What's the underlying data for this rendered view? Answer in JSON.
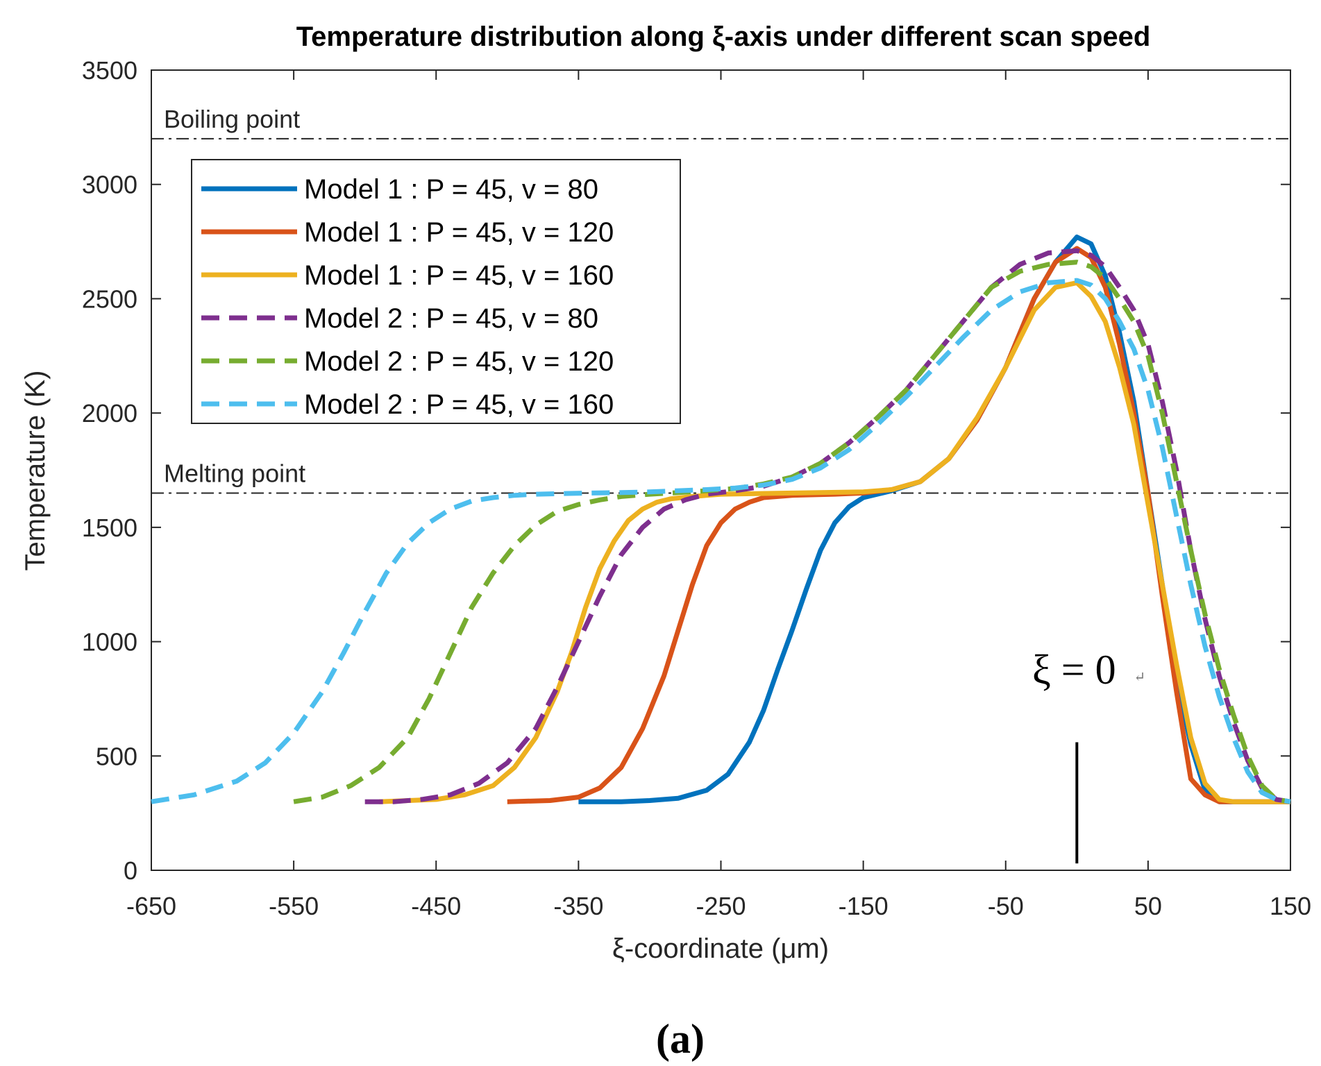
{
  "chart_data": {
    "type": "line",
    "title": "Temperature distribution along ξ-axis under different scan speed",
    "xlabel": "ξ-coordinate (μm)",
    "ylabel": "Temperature (K)",
    "xlim": [
      -650,
      150
    ],
    "ylim": [
      0,
      3500
    ],
    "xticks": [
      -650,
      -550,
      -450,
      -350,
      -250,
      -150,
      -50,
      50,
      150
    ],
    "yticks": [
      0,
      500,
      1000,
      1500,
      2000,
      2500,
      3000,
      3500
    ],
    "grid": false,
    "legend_position": "top-left",
    "reference_lines": [
      {
        "label": "Boiling point",
        "y": 3200
      },
      {
        "label": "Melting point",
        "y": 1650
      }
    ],
    "annotation": {
      "text": "ξ = 0",
      "x": 0,
      "y_from": 30,
      "y_to": 560,
      "mark": "↵"
    },
    "panel_label": "(a)",
    "series": [
      {
        "name": "Model 1 : P = 45, v = 80",
        "color": "#0072BD",
        "dash": "solid",
        "x": [
          -350,
          -320,
          -300,
          -280,
          -260,
          -245,
          -230,
          -220,
          -210,
          -200,
          -190,
          -180,
          -170,
          -160,
          -150,
          -130,
          -110,
          -90,
          -70,
          -50,
          -30,
          -15,
          0,
          10,
          20,
          30,
          40,
          50,
          60,
          70,
          80,
          90,
          100,
          110,
          130,
          150
        ],
        "y": [
          300,
          300,
          305,
          315,
          350,
          420,
          560,
          700,
          880,
          1050,
          1230,
          1400,
          1520,
          1590,
          1630,
          1660,
          1700,
          1800,
          1970,
          2200,
          2500,
          2660,
          2770,
          2740,
          2600,
          2350,
          2050,
          1650,
          1250,
          850,
          550,
          350,
          300,
          300,
          300,
          300
        ]
      },
      {
        "name": "Model 1 : P = 45, v = 120",
        "color": "#D95319",
        "dash": "solid",
        "x": [
          -400,
          -370,
          -350,
          -335,
          -320,
          -305,
          -290,
          -280,
          -270,
          -260,
          -250,
          -240,
          -230,
          -220,
          -200,
          -170,
          -150,
          -130,
          -110,
          -90,
          -70,
          -50,
          -30,
          -15,
          0,
          10,
          20,
          30,
          40,
          50,
          60,
          70,
          80,
          90,
          100,
          110,
          130,
          150
        ],
        "y": [
          300,
          305,
          320,
          360,
          450,
          620,
          850,
          1050,
          1250,
          1420,
          1520,
          1580,
          1610,
          1630,
          1640,
          1645,
          1650,
          1665,
          1700,
          1800,
          1970,
          2200,
          2500,
          2660,
          2720,
          2680,
          2550,
          2300,
          2000,
          1650,
          1200,
          780,
          400,
          330,
          300,
          300,
          300,
          300
        ]
      },
      {
        "name": "Model 1 : P = 45, v = 160",
        "color": "#EDB120",
        "dash": "solid",
        "x": [
          -490,
          -450,
          -430,
          -410,
          -395,
          -380,
          -365,
          -355,
          -345,
          -335,
          -325,
          -315,
          -305,
          -295,
          -285,
          -270,
          -250,
          -200,
          -150,
          -130,
          -110,
          -90,
          -70,
          -50,
          -30,
          -15,
          0,
          10,
          20,
          30,
          40,
          50,
          60,
          70,
          80,
          90,
          100,
          110,
          130,
          150
        ],
        "y": [
          300,
          310,
          330,
          370,
          450,
          580,
          780,
          950,
          1150,
          1320,
          1440,
          1530,
          1580,
          1610,
          1625,
          1635,
          1645,
          1650,
          1655,
          1665,
          1700,
          1800,
          1980,
          2200,
          2450,
          2550,
          2570,
          2510,
          2400,
          2200,
          1950,
          1600,
          1250,
          900,
          580,
          380,
          310,
          300,
          300,
          300
        ]
      },
      {
        "name": "Model 2 : P = 45, v = 80",
        "color": "#7E2F8E",
        "dash": "dashed",
        "x": [
          -500,
          -480,
          -460,
          -440,
          -420,
          -400,
          -380,
          -365,
          -350,
          -335,
          -320,
          -305,
          -290,
          -275,
          -260,
          -240,
          -220,
          -200,
          -180,
          -160,
          -140,
          -120,
          -100,
          -80,
          -60,
          -40,
          -20,
          0,
          10,
          20,
          30,
          40,
          50,
          60,
          70,
          80,
          90,
          100,
          110,
          120,
          130,
          140,
          150
        ],
        "y": [
          300,
          300,
          310,
          330,
          380,
          470,
          620,
          800,
          1000,
          1200,
          1380,
          1500,
          1580,
          1620,
          1645,
          1660,
          1680,
          1720,
          1780,
          1870,
          1980,
          2100,
          2250,
          2400,
          2550,
          2650,
          2700,
          2710,
          2690,
          2640,
          2550,
          2450,
          2300,
          2050,
          1750,
          1400,
          1100,
          850,
          650,
          480,
          360,
          310,
          300
        ]
      },
      {
        "name": "Model 2 : P = 45, v = 120",
        "color": "#77AC30",
        "dash": "dashed",
        "x": [
          -550,
          -530,
          -510,
          -490,
          -470,
          -455,
          -440,
          -425,
          -410,
          -395,
          -380,
          -365,
          -350,
          -335,
          -320,
          -300,
          -280,
          -260,
          -240,
          -220,
          -200,
          -180,
          -160,
          -140,
          -120,
          -100,
          -80,
          -60,
          -40,
          -20,
          0,
          10,
          20,
          30,
          40,
          50,
          60,
          70,
          80,
          90,
          100,
          110,
          120,
          130,
          140,
          150
        ],
        "y": [
          300,
          320,
          370,
          450,
          580,
          750,
          950,
          1150,
          1300,
          1420,
          1510,
          1570,
          1600,
          1620,
          1635,
          1645,
          1652,
          1660,
          1670,
          1690,
          1720,
          1780,
          1870,
          1980,
          2100,
          2250,
          2400,
          2550,
          2620,
          2650,
          2660,
          2640,
          2590,
          2500,
          2400,
          2250,
          2000,
          1700,
          1400,
          1120,
          880,
          680,
          500,
          370,
          310,
          300
        ]
      },
      {
        "name": "Model 2 : P = 45, v = 160",
        "color": "#4DBEEE",
        "dash": "dashed",
        "x": [
          -650,
          -620,
          -590,
          -570,
          -550,
          -530,
          -515,
          -500,
          -485,
          -470,
          -455,
          -440,
          -425,
          -410,
          -395,
          -380,
          -360,
          -340,
          -320,
          -300,
          -280,
          -260,
          -240,
          -220,
          -200,
          -180,
          -160,
          -140,
          -120,
          -100,
          -80,
          -60,
          -40,
          -20,
          0,
          10,
          20,
          30,
          40,
          50,
          60,
          70,
          80,
          90,
          100,
          110,
          120,
          130,
          140,
          150
        ],
        "y": [
          300,
          330,
          390,
          470,
          600,
          780,
          950,
          1130,
          1300,
          1430,
          1520,
          1580,
          1615,
          1630,
          1640,
          1645,
          1648,
          1650,
          1652,
          1655,
          1660,
          1665,
          1672,
          1685,
          1710,
          1760,
          1840,
          1950,
          2070,
          2200,
          2330,
          2450,
          2530,
          2570,
          2580,
          2560,
          2500,
          2400,
          2280,
          2100,
          1850,
          1550,
          1250,
          980,
          760,
          580,
          430,
          340,
          310,
          300
        ]
      }
    ]
  }
}
